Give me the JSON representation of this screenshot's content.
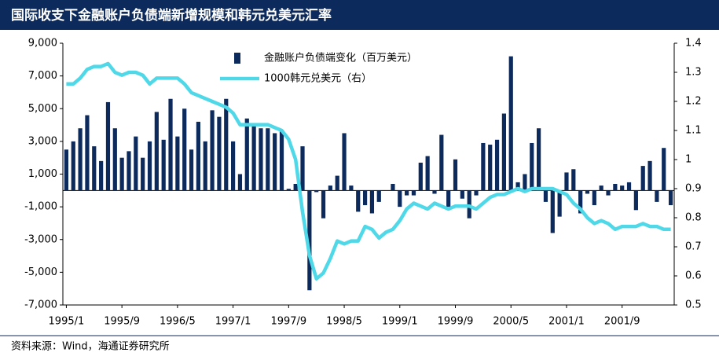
{
  "chart_data": {
    "type": "bar_line",
    "title": "国际收支下金融账户负债端新增规模和韩元兑美元汇率",
    "source": "资料来源：Wind，海通证券研究所",
    "categories": [
      "1995/1",
      null,
      null,
      null,
      null,
      null,
      null,
      null,
      "1995/9",
      null,
      null,
      null,
      null,
      null,
      null,
      null,
      "1996/5",
      null,
      null,
      null,
      null,
      null,
      null,
      null,
      "1997/1",
      null,
      null,
      null,
      null,
      null,
      null,
      null,
      "1997/9",
      null,
      null,
      null,
      null,
      null,
      null,
      null,
      "1998/5",
      null,
      null,
      null,
      null,
      null,
      null,
      null,
      "1999/1",
      null,
      null,
      null,
      null,
      null,
      null,
      null,
      "1999/9",
      null,
      null,
      null,
      null,
      null,
      null,
      null,
      "2000/5",
      null,
      null,
      null,
      null,
      null,
      null,
      null,
      "2001/1",
      null,
      null,
      null,
      null,
      null,
      null,
      null,
      "2001/9",
      null,
      null,
      null,
      null,
      null,
      null,
      null
    ],
    "series": [
      {
        "name": "金融账户负债端变化（百万美元）",
        "color": "#0d2a5c",
        "kind": "bar",
        "values": [
          2500,
          3000,
          3800,
          4600,
          2700,
          1800,
          5400,
          3800,
          2000,
          2400,
          3300,
          2000,
          3000,
          4800,
          3100,
          5600,
          3300,
          5000,
          2500,
          4200,
          3000,
          4900,
          4500,
          5600,
          3000,
          1000,
          4400,
          4000,
          3800,
          3800,
          3500,
          3700,
          100,
          400,
          2700,
          -6100,
          -100,
          -1700,
          300,
          900,
          3500,
          300,
          -1300,
          -900,
          -1400,
          -700,
          0,
          400,
          -1000,
          -300,
          -300,
          1700,
          2100,
          -200,
          3400,
          -1000,
          1900,
          -500,
          -1700,
          -300,
          2900,
          2800,
          3100,
          4700,
          8200,
          500,
          1000,
          2900,
          3800,
          -700,
          -2600,
          -1600,
          1100,
          1300,
          -1400,
          -200,
          -900,
          300,
          -300,
          400,
          300,
          500,
          -1200,
          1500,
          1800,
          -700,
          2600,
          -900
        ]
      },
      {
        "name": "1000韩元兑美元（右）",
        "color": "#4fd9e8",
        "kind": "line",
        "axis": "y2",
        "values": [
          1.26,
          1.26,
          1.28,
          1.31,
          1.32,
          1.32,
          1.33,
          1.3,
          1.29,
          1.3,
          1.3,
          1.29,
          1.26,
          1.28,
          1.28,
          1.28,
          1.28,
          1.26,
          1.23,
          1.22,
          1.21,
          1.2,
          1.19,
          1.18,
          1.16,
          1.12,
          1.12,
          1.12,
          1.12,
          1.12,
          1.11,
          1.1,
          1.07,
          1.0,
          0.82,
          0.67,
          0.59,
          0.61,
          0.66,
          0.72,
          0.71,
          0.72,
          0.72,
          0.77,
          0.76,
          0.73,
          0.75,
          0.76,
          0.79,
          0.83,
          0.85,
          0.84,
          0.83,
          0.85,
          0.84,
          0.83,
          0.84,
          0.84,
          0.84,
          0.83,
          0.85,
          0.87,
          0.88,
          0.88,
          0.89,
          0.9,
          0.89,
          0.9,
          0.9,
          0.9,
          0.9,
          0.89,
          0.88,
          0.85,
          0.83,
          0.8,
          0.78,
          0.79,
          0.78,
          0.76,
          0.77,
          0.77,
          0.77,
          0.78,
          0.77,
          0.77,
          0.76,
          0.76
        ]
      }
    ],
    "ylim": [
      -7000,
      9000
    ],
    "yticks": [
      {
        "value": 9000,
        "label": "9,000"
      },
      {
        "value": 7000,
        "label": "7,000"
      },
      {
        "value": 5000,
        "label": "5,000"
      },
      {
        "value": 3000,
        "label": "3,000"
      },
      {
        "value": 1000,
        "label": "1,000"
      },
      {
        "value": -1000,
        "label": "-1,000"
      },
      {
        "value": -3000,
        "label": "-3,000"
      },
      {
        "value": -5000,
        "label": "-5,000"
      },
      {
        "value": -7000,
        "label": "-7,000"
      }
    ],
    "y2lim": [
      0.5,
      1.4
    ],
    "y2ticks": [
      0.5,
      0.6,
      0.7,
      0.8,
      0.9,
      1,
      1.1,
      1.2,
      1.3,
      1.4
    ],
    "legend": "top"
  }
}
